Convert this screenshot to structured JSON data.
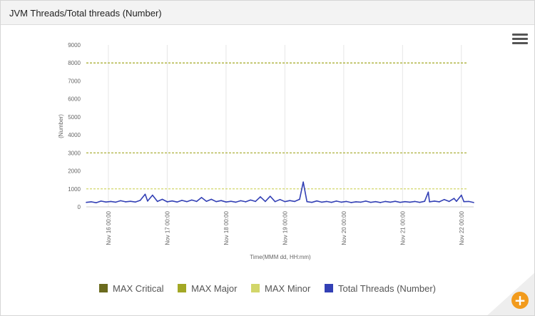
{
  "panel": {
    "title": "JVM Threads/Total threads (Number)"
  },
  "toolbar": {
    "menu_icon": "hamburger-menu-icon",
    "zoom_icon": "zoom-in-plus-icon",
    "zoom_symbol": "+"
  },
  "colors": {
    "max_critical": "#6b6b1e",
    "max_major": "#a3a825",
    "max_minor": "#d2d66a",
    "total_threads": "#3340b5",
    "accent": "#f29b1d"
  },
  "legend": [
    {
      "label": "MAX Critical",
      "color": "#6b6b1e"
    },
    {
      "label": "MAX Major",
      "color": "#a3a825"
    },
    {
      "label": "MAX Minor",
      "color": "#d2d66a"
    },
    {
      "label": "Total Threads (Number)",
      "color": "#3340b5"
    }
  ],
  "chart_data": {
    "type": "line",
    "xlabel": "Time(MMM dd, HH:mm)",
    "ylabel": "(Number)",
    "ylim": [
      0,
      9000
    ],
    "yticks": [
      0,
      1000,
      2000,
      3000,
      4000,
      5000,
      6000,
      7000,
      8000,
      9000
    ],
    "xlim": [
      "Nov 15 15:00",
      "Nov 22 05:00"
    ],
    "xticks": [
      "Nov 16 00:00",
      "Nov 17 00:00",
      "Nov 18 00:00",
      "Nov 19 00:00",
      "Nov 20 00:00",
      "Nov 21 00:00",
      "Nov 22 00:00"
    ],
    "grid": true,
    "legend_position": "bottom",
    "thresholds": [
      {
        "name": "MAX Critical",
        "value": 8000
      },
      {
        "name": "MAX Major",
        "value": 3000
      },
      {
        "name": "MAX Minor",
        "value": 1000
      }
    ],
    "series": [
      {
        "name": "Total Threads (Number)",
        "points": [
          [
            "Nov 15 15:00",
            250
          ],
          [
            "Nov 15 17:00",
            280
          ],
          [
            "Nov 15 19:00",
            230
          ],
          [
            "Nov 15 21:00",
            320
          ],
          [
            "Nov 15 23:00",
            270
          ],
          [
            "Nov 16 01:00",
            300
          ],
          [
            "Nov 16 03:00",
            260
          ],
          [
            "Nov 16 05:00",
            340
          ],
          [
            "Nov 16 07:00",
            280
          ],
          [
            "Nov 16 09:00",
            310
          ],
          [
            "Nov 16 11:00",
            270
          ],
          [
            "Nov 16 13:00",
            360
          ],
          [
            "Nov 16 15:00",
            700
          ],
          [
            "Nov 16 16:00",
            320
          ],
          [
            "Nov 16 18:00",
            650
          ],
          [
            "Nov 16 20:00",
            300
          ],
          [
            "Nov 16 22:00",
            420
          ],
          [
            "Nov 17 00:00",
            280
          ],
          [
            "Nov 17 02:00",
            330
          ],
          [
            "Nov 17 04:00",
            270
          ],
          [
            "Nov 17 06:00",
            360
          ],
          [
            "Nov 17 08:00",
            290
          ],
          [
            "Nov 17 10:00",
            380
          ],
          [
            "Nov 17 12:00",
            300
          ],
          [
            "Nov 17 14:00",
            520
          ],
          [
            "Nov 17 16:00",
            310
          ],
          [
            "Nov 17 18:00",
            420
          ],
          [
            "Nov 17 20:00",
            290
          ],
          [
            "Nov 17 22:00",
            350
          ],
          [
            "Nov 18 00:00",
            270
          ],
          [
            "Nov 18 02:00",
            310
          ],
          [
            "Nov 18 04:00",
            260
          ],
          [
            "Nov 18 06:00",
            340
          ],
          [
            "Nov 18 08:00",
            280
          ],
          [
            "Nov 18 10:00",
            380
          ],
          [
            "Nov 18 12:00",
            300
          ],
          [
            "Nov 18 14:00",
            560
          ],
          [
            "Nov 18 16:00",
            300
          ],
          [
            "Nov 18 18:00",
            590
          ],
          [
            "Nov 18 20:00",
            290
          ],
          [
            "Nov 18 22:00",
            410
          ],
          [
            "Nov 19 00:00",
            290
          ],
          [
            "Nov 19 02:00",
            350
          ],
          [
            "Nov 19 04:00",
            300
          ],
          [
            "Nov 19 06:00",
            420
          ],
          [
            "Nov 19 07:30",
            1380
          ],
          [
            "Nov 19 09:00",
            290
          ],
          [
            "Nov 19 11:00",
            250
          ],
          [
            "Nov 19 13:00",
            330
          ],
          [
            "Nov 19 15:00",
            260
          ],
          [
            "Nov 19 17:00",
            300
          ],
          [
            "Nov 19 19:00",
            250
          ],
          [
            "Nov 19 21:00",
            320
          ],
          [
            "Nov 19 23:00",
            260
          ],
          [
            "Nov 20 01:00",
            300
          ],
          [
            "Nov 20 03:00",
            240
          ],
          [
            "Nov 20 05:00",
            280
          ],
          [
            "Nov 20 07:00",
            260
          ],
          [
            "Nov 20 09:00",
            320
          ],
          [
            "Nov 20 11:00",
            250
          ],
          [
            "Nov 20 13:00",
            290
          ],
          [
            "Nov 20 15:00",
            240
          ],
          [
            "Nov 20 17:00",
            300
          ],
          [
            "Nov 20 19:00",
            260
          ],
          [
            "Nov 20 21:00",
            310
          ],
          [
            "Nov 20 23:00",
            250
          ],
          [
            "Nov 21 01:00",
            290
          ],
          [
            "Nov 21 03:00",
            260
          ],
          [
            "Nov 21 05:00",
            300
          ],
          [
            "Nov 21 07:00",
            250
          ],
          [
            "Nov 21 09:00",
            310
          ],
          [
            "Nov 21 10:30",
            820
          ],
          [
            "Nov 21 11:00",
            280
          ],
          [
            "Nov 21 13:00",
            320
          ],
          [
            "Nov 21 15:00",
            280
          ],
          [
            "Nov 21 17:00",
            410
          ],
          [
            "Nov 21 19:00",
            300
          ],
          [
            "Nov 21 21:00",
            470
          ],
          [
            "Nov 21 22:00",
            310
          ],
          [
            "Nov 22 00:00",
            650
          ],
          [
            "Nov 22 01:00",
            290
          ],
          [
            "Nov 22 03:00",
            300
          ],
          [
            "Nov 22 05:00",
            240
          ]
        ]
      }
    ]
  }
}
